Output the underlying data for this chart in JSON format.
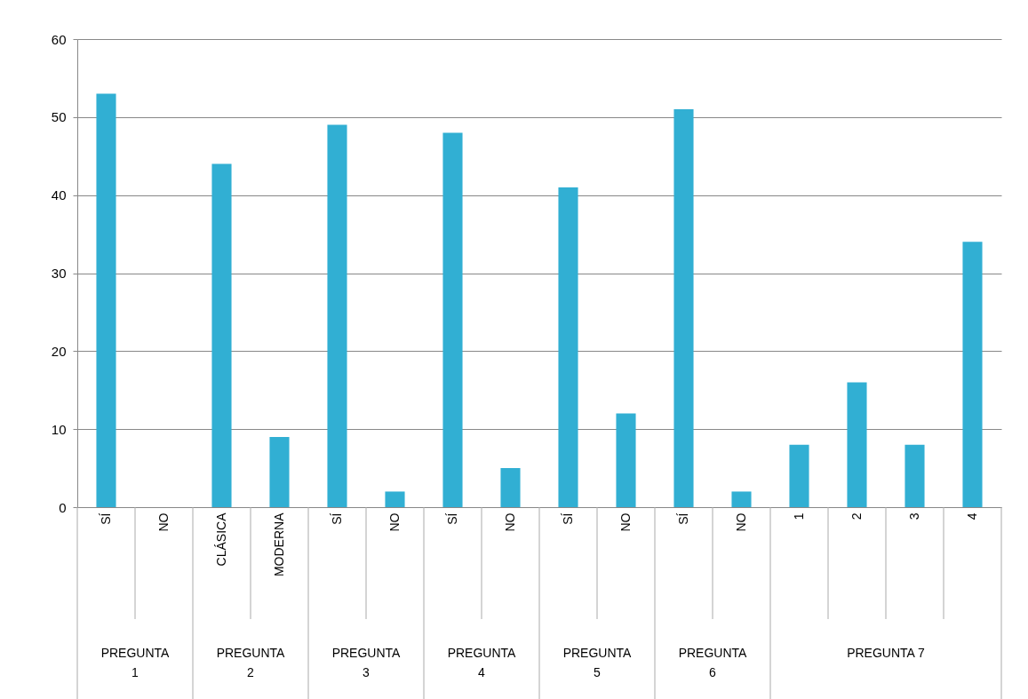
{
  "chart_data": {
    "type": "bar",
    "categories": [
      "SÍ",
      "NO",
      "CLÁSICA",
      "MODERNA",
      "SÍ",
      "NO",
      "SÍ",
      "NO",
      "SÍ",
      "NO",
      "SÍ",
      "NO",
      "1",
      "2",
      "3",
      "4"
    ],
    "values": [
      53,
      0,
      44,
      9,
      49,
      2,
      48,
      5,
      41,
      12,
      51,
      2,
      8,
      16,
      8,
      34
    ],
    "color": "#31afd3",
    "ylim": [
      0,
      60
    ],
    "yticks": [
      0,
      10,
      20,
      30,
      40,
      50,
      60
    ],
    "grid": "y",
    "annotations": [
      "PREGUNTA 1",
      "PREGUNTA 2",
      "PREGUNTA 3",
      "PREGUNTA 4",
      "PREGUNTA 5",
      "PREGUNTA 6",
      "PREGUNTA 7"
    ]
  }
}
